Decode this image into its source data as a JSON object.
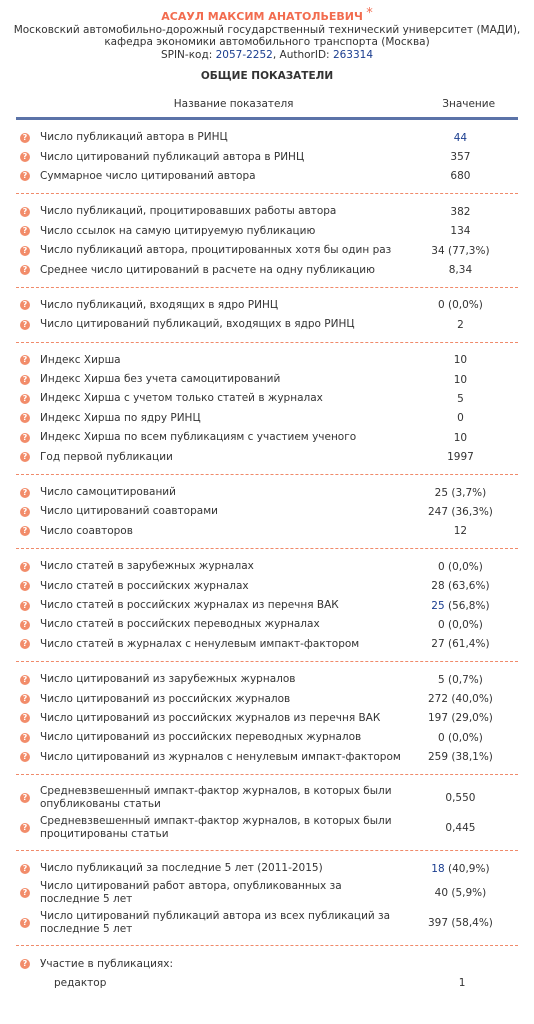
{
  "header": {
    "name": "АСАУЛ МАКСИМ АНАТОЛЬЕВИЧ",
    "mark": "*",
    "org_lines": [
      "Московский автомобильно-дорожный государственный технический университет (МАДИ),",
      "кафедра экономики автомобильного транспорта (Москва)"
    ],
    "ids": {
      "spin_label": "SPIN-код: ",
      "spin": "2057-2252",
      "author_label": ", AuthorID: ",
      "author_id": "263314"
    }
  },
  "section_title": "ОБЩИЕ ПОКАЗАТЕЛИ",
  "table": {
    "columns": [
      "Название показателя",
      "Значение"
    ],
    "groups": [
      {
        "rows": [
          {
            "label": "Число публикаций автора в РИНЦ",
            "value": "44",
            "link": true
          },
          {
            "label": "Число цитирований публикаций автора в РИНЦ",
            "value": "357"
          },
          {
            "label": "Суммарное число цитирований автора",
            "value": "680"
          }
        ]
      },
      {
        "rows": [
          {
            "label": "Число публикаций, процитировавших работы автора",
            "value": "382"
          },
          {
            "label": "Число ссылок на самую цитируемую публикацию",
            "value": "134"
          },
          {
            "label": "Число публикаций автора, процитированных хотя бы один раз",
            "value": "34",
            "share": "(77,3%)"
          },
          {
            "label": "Среднее число цитирований в расчете на одну публикацию",
            "value": "8,34"
          }
        ]
      },
      {
        "rows": [
          {
            "label": "Число публикаций, входящих в ядро РИНЦ",
            "value": "0",
            "share": "(0,0%)"
          },
          {
            "label": "Число цитирований публикаций, входящих в ядро РИНЦ",
            "value": "2"
          }
        ]
      },
      {
        "rows": [
          {
            "label": "Индекс Хирша",
            "value": "10"
          },
          {
            "label": "Индекс Хирша без учета самоцитирований",
            "value": "10"
          },
          {
            "label": "Индекс Хирша с учетом только статей в журналах",
            "value": "5"
          },
          {
            "label": "Индекс Хирша по ядру РИНЦ",
            "value": "0"
          },
          {
            "label": "Индекс Хирша по всем публикациям с участием ученого",
            "value": "10"
          },
          {
            "label": "Год первой публикации",
            "value": "1997"
          }
        ]
      },
      {
        "rows": [
          {
            "label": "Число самоцитирований",
            "value": "25",
            "share": "(3,7%)"
          },
          {
            "label": "Число цитирований соавторами",
            "value": "247",
            "share": "(36,3%)"
          },
          {
            "label": "Число соавторов",
            "value": "12"
          }
        ]
      },
      {
        "rows": [
          {
            "label": "Число статей в зарубежных журналах",
            "value": "0",
            "share": "(0,0%)"
          },
          {
            "label": "Число статей в российских журналах",
            "value": "28",
            "share": "(63,6%)"
          },
          {
            "label": "Число статей в российских журналах из перечня ВАК",
            "value": "25",
            "share": "(56,8%)",
            "link": true
          },
          {
            "label": "Число статей в российских переводных журналах",
            "value": "0",
            "share": "(0,0%)"
          },
          {
            "label": "Число статей в журналах с ненулевым импакт-фактором",
            "value": "27",
            "share": "(61,4%)"
          }
        ]
      },
      {
        "rows": [
          {
            "label": "Число цитирований из зарубежных журналов",
            "value": "5",
            "share": "(0,7%)"
          },
          {
            "label": "Число цитирований из российских журналов",
            "value": "272",
            "share": "(40,0%)"
          },
          {
            "label": "Число цитирований из российских журналов из перечня ВАК",
            "value": "197",
            "share": "(29,0%)"
          },
          {
            "label": "Число цитирований из российских переводных журналов",
            "value": "0",
            "share": "(0,0%)"
          },
          {
            "label": "Число цитирований из журналов с ненулевым импакт-фактором",
            "value": "259",
            "share": "(38,1%)"
          }
        ]
      },
      {
        "rows": [
          {
            "label": "Средневзвешенный импакт-фактор журналов, в которых были опубликованы статьи",
            "value": "0,550"
          },
          {
            "label": "Средневзвешенный импакт-фактор журналов, в которых были процитированы статьи",
            "value": "0,445"
          }
        ]
      },
      {
        "rows": [
          {
            "label": "Число публикаций за последние 5 лет (2011-2015)",
            "value": "18",
            "share": "(40,9%)",
            "link": true
          },
          {
            "label": "Число цитирований работ автора, опубликованных за последние 5 лет",
            "value": "40",
            "share": "(5,9%)"
          },
          {
            "label": "Число цитирований публикаций автора из всех публикаций за последние 5 лет",
            "value": "397",
            "share": "(58,4%)"
          }
        ]
      },
      {
        "title": "Участие в публикациях:",
        "rows": [
          {
            "label": "редактор",
            "value": "1"
          }
        ]
      }
    ]
  }
}
